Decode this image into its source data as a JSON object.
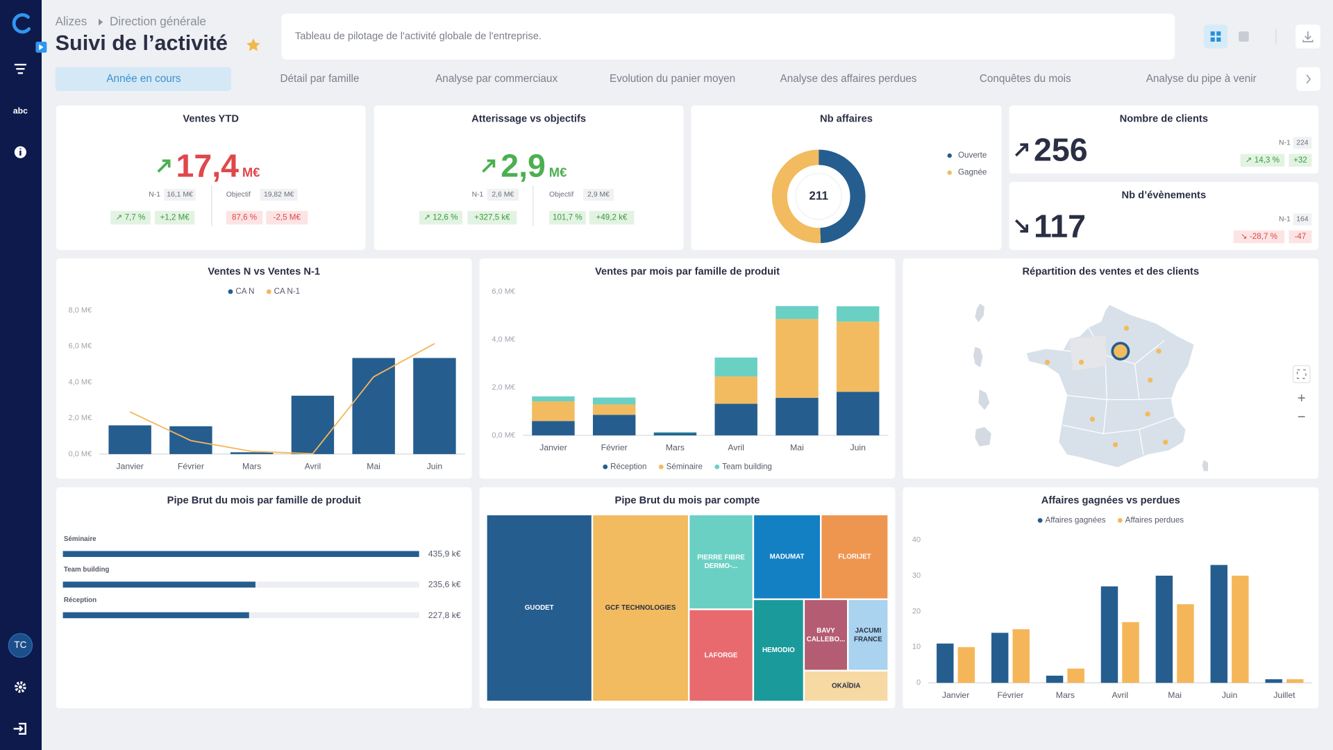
{
  "sidebar": {
    "text_icon": "abc",
    "user_initials": "TC"
  },
  "header": {
    "breadcrumb": [
      "Alizes",
      "Direction générale"
    ],
    "title": "Suivi de l’activité",
    "description": "Tableau de pilotage de l'activité globale de l'entreprise."
  },
  "tabs": [
    "Année en cours",
    "Détail par famille",
    "Analyse par commerciaux",
    "Evolution du panier moyen",
    "Analyse des affaires perdues",
    "Conquêtes du mois",
    "Analyse du pipe à venir"
  ],
  "kpis": [
    {
      "title": "Ventes YTD",
      "value": "17,4",
      "unit": "M€",
      "n1_label": "N-1",
      "n1": "16,1 M€",
      "objective_label": "Objectif",
      "objective": "19,82 M€",
      "badges": [
        "↗ 7,7 %",
        "+1,2 M€",
        "87,6 %",
        "-2,5 M€"
      ]
    },
    {
      "title": "Atterissage vs objectifs",
      "value": "2,9",
      "unit": "M€",
      "n1_label": "N-1",
      "n1": "2,6 M€",
      "objective_label": "Objectif",
      "objective": "2,9 M€",
      "badges": [
        "↗ 12,6 %",
        "+327,5 k€",
        "101,7 %",
        "+49,2 k€"
      ]
    },
    {
      "title": "Nombre de clients",
      "value": "256",
      "n1_label": "N-1",
      "n1": "224",
      "badges": [
        "↗ 14,3 %",
        "+32"
      ]
    },
    {
      "title": "Nb d’évènements",
      "value": "117",
      "n1_label": "N-1",
      "n1": "164",
      "badges": [
        "↘ -28,7 %",
        "-47"
      ]
    }
  ],
  "chart_data": [
    {
      "type": "donut",
      "title": "Nb affaires",
      "total": 211,
      "categories": [
        "Ouverte",
        "Gagnée"
      ],
      "values": [
        104,
        107
      ],
      "colors": [
        "#255d8f",
        "#f2bb5f"
      ]
    },
    {
      "type": "combo",
      "title": "Ventes N vs Ventes N-1",
      "categories": [
        "Janvier",
        "Février",
        "Mars",
        "Avril",
        "Mai",
        "Juin"
      ],
      "series": [
        {
          "name": "CA N",
          "type": "bar",
          "color": "#255d8f",
          "values": [
            1.6,
            1.55,
            0.1,
            3.25,
            5.35,
            5.35
          ]
        },
        {
          "name": "CA N-1",
          "type": "line",
          "color": "#f5b65a",
          "values": [
            2.35,
            0.75,
            0.15,
            0.02,
            4.3,
            6.15
          ]
        }
      ],
      "ylim": [
        0,
        8
      ],
      "yticks": [
        {
          "value": 0,
          "label": "0,0 M€"
        },
        {
          "value": 2,
          "label": "2,0 M€"
        },
        {
          "value": 4,
          "label": "4,0 M€"
        },
        {
          "value": 6,
          "label": "6,0 M€"
        },
        {
          "value": 8,
          "label": "8,0 M€"
        }
      ],
      "grid": false
    },
    {
      "type": "stacked_bar",
      "title": "Ventes par mois par famille de produit",
      "categories": [
        "Janvier",
        "Février",
        "Mars",
        "Avril",
        "Mai",
        "Juin"
      ],
      "series": [
        {
          "name": "Réception",
          "color": "#255d8f",
          "values": [
            0.6,
            0.86,
            0.1,
            1.32,
            1.57,
            1.82
          ]
        },
        {
          "name": "Séminaire",
          "color": "#f2bb5f",
          "values": [
            0.82,
            0.43,
            0,
            1.14,
            3.29,
            2.93
          ]
        },
        {
          "name": "Team building",
          "color": "#6ad0c4",
          "values": [
            0.21,
            0.29,
            0.04,
            0.79,
            0.54,
            0.64
          ]
        }
      ],
      "ylim": [
        0,
        6
      ],
      "yticks": [
        {
          "value": 0,
          "label": "0,0 M€"
        },
        {
          "value": 2,
          "label": "2,0 M€"
        },
        {
          "value": 4,
          "label": "4,0 M€"
        },
        {
          "value": 6,
          "label": "6,0 M€"
        }
      ],
      "grid": false
    },
    {
      "type": "map",
      "title": "Répartition des ventes et des clients"
    },
    {
      "type": "hbar",
      "title": "Pipe Brut du mois par famille de produit",
      "categories": [
        "Séminaire",
        "Team building",
        "Réception"
      ],
      "values": [
        435.9,
        235.6,
        227.8
      ],
      "value_labels": [
        "435,9 k€",
        "235,6 k€",
        "227,8 k€"
      ],
      "color": "#255d8f"
    },
    {
      "type": "treemap",
      "title": "Pipe Brut du mois par compte",
      "labels": [
        "GUODET",
        "GCF TECHNOLOGIES",
        "PIERRE FIBRE DERMO-...",
        "MADUMAT",
        "FLORIJET",
        "LAFORGE",
        "HEMODIO",
        "BAVY CALLEBO...",
        "JACUMI FRANCE",
        "OKAÏDIA"
      ],
      "values": [
        237,
        216,
        73,
        68.5,
        68.5,
        71,
        62,
        37.5,
        34.6,
        31.2
      ],
      "colors": [
        "#255d8f",
        "#f2bb5f",
        "#6ad0c4",
        "#1380c4",
        "#ee9650",
        "#e86a6e",
        "#1a9a9a",
        "#b35c72",
        "#a9d3ef",
        "#f7d9a4"
      ]
    },
    {
      "type": "grouped_bar",
      "title": "Affaires gagnées vs perdues",
      "categories": [
        "Janvier",
        "Février",
        "Mars",
        "Avril",
        "Mai",
        "Juin",
        "Juillet"
      ],
      "series": [
        {
          "name": "Affaires gagnées",
          "color": "#255d8f",
          "values": [
            11,
            14,
            2,
            27,
            30,
            33,
            1
          ]
        },
        {
          "name": "Affaires perdues",
          "color": "#f5b65a",
          "values": [
            10,
            15,
            4,
            17,
            22,
            30,
            1
          ]
        }
      ],
      "ylim": [
        0,
        40
      ],
      "yticks": [
        0,
        10,
        20,
        30,
        40
      ],
      "grid": false
    }
  ]
}
